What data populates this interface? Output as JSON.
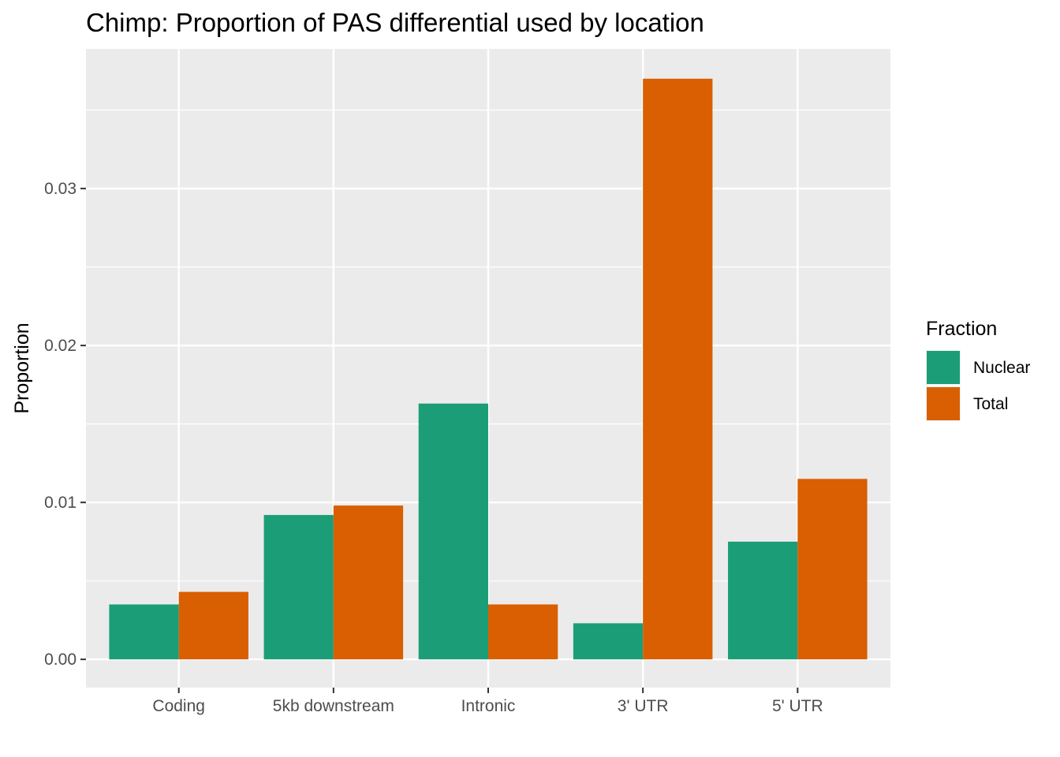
{
  "chart_data": {
    "type": "bar",
    "title": "Chimp: Proportion of PAS differential used by location",
    "xlabel": "",
    "ylabel": "Proportion",
    "categories": [
      "Coding",
      "5kb downstream",
      "Intronic",
      "3' UTR",
      "5' UTR"
    ],
    "series": [
      {
        "name": "Nuclear",
        "color": "#1b9e77",
        "values": [
          0.0035,
          0.0092,
          0.0163,
          0.0023,
          0.0075
        ]
      },
      {
        "name": "Total",
        "color": "#d95f02",
        "values": [
          0.0043,
          0.0098,
          0.0035,
          0.037,
          0.0115
        ]
      }
    ],
    "ylim": [
      -0.0018,
      0.0389
    ],
    "yticks": [
      0.0,
      0.01,
      0.02,
      0.03
    ],
    "ytick_labels": [
      "0.00",
      "0.01",
      "0.02",
      "0.03"
    ],
    "legend": {
      "title": "Fraction",
      "position": "right"
    },
    "grid": true,
    "panel_background": "#ebebeb"
  }
}
